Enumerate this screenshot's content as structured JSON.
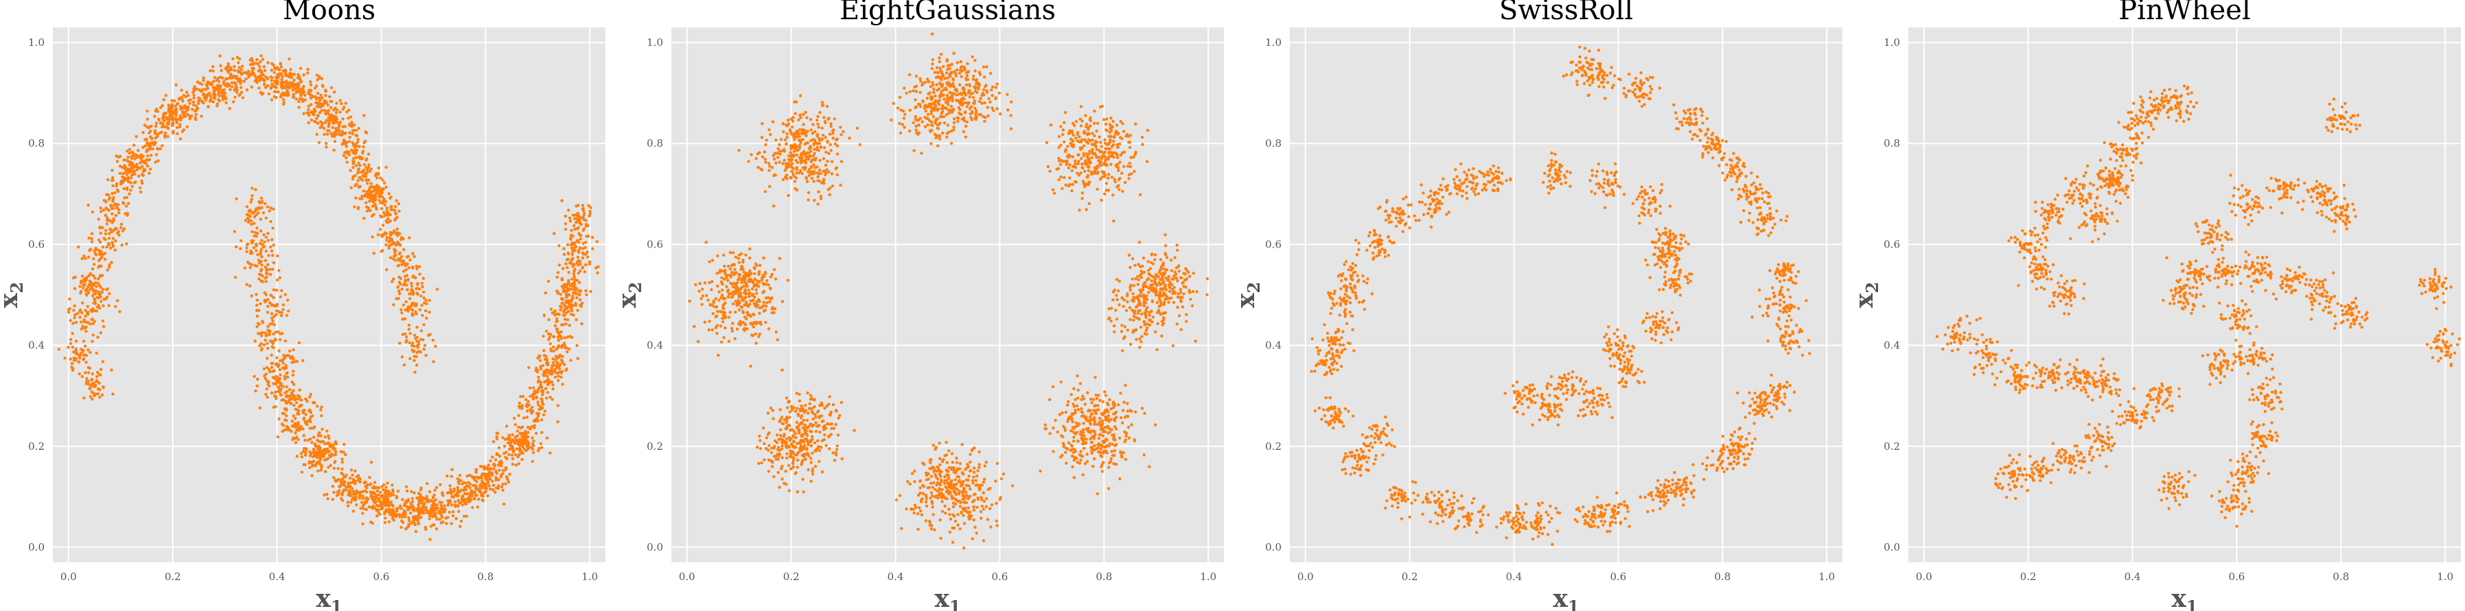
{
  "chart_data": [
    {
      "type": "scatter",
      "title": "Moons",
      "xlabel": "x",
      "xlabel_sub": "1",
      "ylabel": "x",
      "ylabel_sub": "2",
      "xlim": [
        0,
        1
      ],
      "ylim": [
        0,
        1
      ],
      "xticks": [
        "0.0",
        "0.2",
        "0.4",
        "0.6",
        "0.8",
        "1.0"
      ],
      "yticks": [
        "0.0",
        "0.2",
        "0.4",
        "0.6",
        "0.8",
        "1.0"
      ],
      "grid": true,
      "marker_color": "#ff7f0e",
      "background_color": "#e5e5e5",
      "series": [
        {
          "x": [
            0.05,
            0.03,
            0.06,
            0.09,
            0.14,
            0.19,
            0.25,
            0.31,
            0.37,
            0.43,
            0.48,
            0.53,
            0.57,
            0.61,
            0.64,
            0.66,
            0.67,
            0.02,
            0.04,
            0.08,
            0.11,
            0.16,
            0.22,
            0.28,
            0.34,
            0.4,
            0.46,
            0.51,
            0.55,
            0.59,
            0.62,
            0.65,
            0.06,
            0.12,
            0.2,
            0.3,
            0.41,
            0.5,
            0.58,
            0.36,
            0.37,
            0.38,
            0.4,
            0.43,
            0.47,
            0.52,
            0.57,
            0.62,
            0.67,
            0.72,
            0.77,
            0.82,
            0.87,
            0.91,
            0.94,
            0.96,
            0.97,
            0.98,
            0.39,
            0.41,
            0.45,
            0.5,
            0.55,
            0.6,
            0.65,
            0.7,
            0.75,
            0.8,
            0.85,
            0.89,
            0.93,
            0.95,
            0.97,
            0.36,
            0.42,
            0.48,
            0.6,
            0.68,
            0.79,
            0.88,
            0.92,
            0.96
          ],
          "y": [
            0.32,
            0.45,
            0.58,
            0.68,
            0.77,
            0.84,
            0.89,
            0.93,
            0.94,
            0.92,
            0.88,
            0.82,
            0.74,
            0.66,
            0.56,
            0.47,
            0.4,
            0.38,
            0.52,
            0.63,
            0.73,
            0.81,
            0.87,
            0.91,
            0.94,
            0.93,
            0.9,
            0.85,
            0.78,
            0.7,
            0.61,
            0.51,
            0.5,
            0.75,
            0.86,
            0.9,
            0.91,
            0.84,
            0.69,
            0.67,
            0.55,
            0.42,
            0.33,
            0.24,
            0.17,
            0.12,
            0.09,
            0.07,
            0.06,
            0.07,
            0.1,
            0.15,
            0.22,
            0.31,
            0.41,
            0.51,
            0.6,
            0.65,
            0.48,
            0.37,
            0.27,
            0.19,
            0.13,
            0.1,
            0.08,
            0.09,
            0.11,
            0.14,
            0.2,
            0.27,
            0.36,
            0.46,
            0.56,
            0.6,
            0.3,
            0.2,
            0.1,
            0.08,
            0.12,
            0.2,
            0.35,
            0.5
          ]
        }
      ]
    },
    {
      "type": "scatter",
      "title": "EightGaussians",
      "xlabel": "x",
      "xlabel_sub": "1",
      "ylabel": "x",
      "ylabel_sub": "2",
      "xlim": [
        0,
        1
      ],
      "ylim": [
        0,
        1
      ],
      "xticks": [
        "0.0",
        "0.2",
        "0.4",
        "0.6",
        "0.8",
        "1.0"
      ],
      "yticks": [
        "0.0",
        "0.2",
        "0.4",
        "0.6",
        "0.8",
        "1.0"
      ],
      "grid": true,
      "marker_color": "#ff7f0e",
      "background_color": "#e5e5e5",
      "series": [
        {
          "x": [
            0.5,
            0.47,
            0.53,
            0.5,
            0.46,
            0.55,
            0.78,
            0.75,
            0.81,
            0.77,
            0.8,
            0.9,
            0.87,
            0.93,
            0.9,
            0.88,
            0.78,
            0.75,
            0.81,
            0.77,
            0.8,
            0.5,
            0.47,
            0.53,
            0.5,
            0.55,
            0.22,
            0.19,
            0.25,
            0.22,
            0.2,
            0.1,
            0.07,
            0.13,
            0.1,
            0.12,
            0.22,
            0.19,
            0.25,
            0.22,
            0.24
          ],
          "y": [
            0.89,
            0.87,
            0.91,
            0.93,
            0.85,
            0.88,
            0.78,
            0.76,
            0.8,
            0.82,
            0.74,
            0.5,
            0.48,
            0.52,
            0.54,
            0.46,
            0.23,
            0.21,
            0.25,
            0.27,
            0.19,
            0.11,
            0.09,
            0.13,
            0.15,
            0.08,
            0.22,
            0.2,
            0.24,
            0.26,
            0.18,
            0.5,
            0.48,
            0.52,
            0.54,
            0.46,
            0.78,
            0.76,
            0.8,
            0.82,
            0.74
          ]
        }
      ]
    },
    {
      "type": "scatter",
      "title": "SwissRoll",
      "xlabel": "x",
      "xlabel_sub": "1",
      "ylabel": "x",
      "ylabel_sub": "2",
      "xlim": [
        0,
        1
      ],
      "ylim": [
        0,
        1
      ],
      "xticks": [
        "0.0",
        "0.2",
        "0.4",
        "0.6",
        "0.8",
        "1.0"
      ],
      "yticks": [
        "0.0",
        "0.2",
        "0.4",
        "0.6",
        "0.8",
        "1.0"
      ],
      "grid": true,
      "marker_color": "#ff7f0e",
      "background_color": "#e5e5e5",
      "series": [
        {
          "x": [
            0.42,
            0.47,
            0.55,
            0.62,
            0.68,
            0.71,
            0.7,
            0.66,
            0.58,
            0.48,
            0.36,
            0.24,
            0.14,
            0.07,
            0.04,
            0.05,
            0.1,
            0.19,
            0.31,
            0.45,
            0.59,
            0.72,
            0.83,
            0.9,
            0.93,
            0.92,
            0.88,
            0.82,
            0.74,
            0.64,
            0.53,
            0.5,
            0.6,
            0.69,
            0.3,
            0.18,
            0.09,
            0.06,
            0.14,
            0.26,
            0.4,
            0.55,
            0.68,
            0.8,
            0.87,
            0.91,
            0.86,
            0.78,
            0.57
          ],
          "y": [
            0.3,
            0.27,
            0.29,
            0.35,
            0.44,
            0.53,
            0.61,
            0.68,
            0.72,
            0.74,
            0.73,
            0.68,
            0.6,
            0.49,
            0.37,
            0.26,
            0.17,
            0.1,
            0.06,
            0.05,
            0.07,
            0.12,
            0.2,
            0.3,
            0.42,
            0.54,
            0.65,
            0.75,
            0.84,
            0.91,
            0.95,
            0.32,
            0.4,
            0.58,
            0.72,
            0.66,
            0.53,
            0.41,
            0.22,
            0.08,
            0.05,
            0.06,
            0.1,
            0.17,
            0.28,
            0.48,
            0.7,
            0.8,
            0.93
          ]
        }
      ]
    },
    {
      "type": "scatter",
      "title": "PinWheel",
      "xlabel": "x",
      "xlabel_sub": "1",
      "ylabel": "x",
      "ylabel_sub": "2",
      "xlim": [
        0,
        1
      ],
      "ylim": [
        0,
        1
      ],
      "xticks": [
        "0.0",
        "0.2",
        "0.4",
        "0.6",
        "0.8",
        "1.0"
      ],
      "yticks": [
        "0.0",
        "0.2",
        "0.4",
        "0.6",
        "0.8",
        "1.0"
      ],
      "grid": true,
      "marker_color": "#ff7f0e",
      "background_color": "#e5e5e5",
      "series": [
        {
          "x": [
            0.52,
            0.58,
            0.64,
            0.7,
            0.76,
            0.82,
            0.55,
            0.62,
            0.69,
            0.76,
            0.8,
            0.6,
            0.63,
            0.66,
            0.65,
            0.62,
            0.59,
            0.45,
            0.4,
            0.34,
            0.28,
            0.22,
            0.17,
            0.35,
            0.3,
            0.24,
            0.18,
            0.12,
            0.07,
            0.27,
            0.22,
            0.2,
            0.24,
            0.3,
            0.35,
            0.33,
            0.37,
            0.38,
            0.41,
            0.45,
            0.49,
            0.5,
            0.57,
            0.48,
            1.0,
            0.8,
            0.98
          ],
          "y": [
            0.54,
            0.55,
            0.55,
            0.53,
            0.5,
            0.46,
            0.62,
            0.68,
            0.71,
            0.7,
            0.66,
            0.45,
            0.38,
            0.3,
            0.22,
            0.15,
            0.09,
            0.3,
            0.26,
            0.21,
            0.17,
            0.15,
            0.14,
            0.32,
            0.33,
            0.34,
            0.34,
            0.38,
            0.42,
            0.5,
            0.55,
            0.6,
            0.66,
            0.7,
            0.73,
            0.65,
            0.72,
            0.78,
            0.84,
            0.87,
            0.88,
            0.5,
            0.36,
            0.12,
            0.4,
            0.85,
            0.52
          ]
        }
      ]
    }
  ]
}
